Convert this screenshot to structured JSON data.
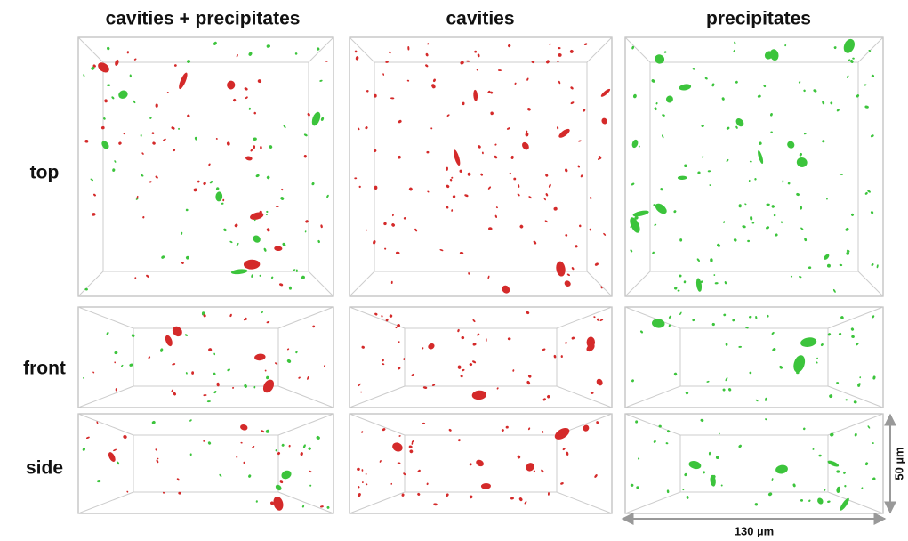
{
  "columns": [
    "cavities + precipitates",
    "cavities",
    "precipitates"
  ],
  "rows": [
    "top",
    "front",
    "side"
  ],
  "scale": {
    "height": "50 µm",
    "width": "130 µm"
  }
}
